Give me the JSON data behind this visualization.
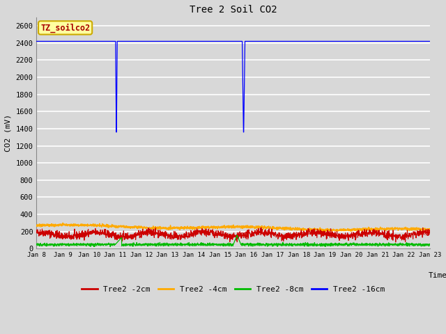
{
  "title": "Tree 2 Soil CO2",
  "ylabel": "CO2 (mV)",
  "xlabel": "Time",
  "annotation_text": "TZ_soilco2",
  "ylim": [
    0,
    2700
  ],
  "yticks": [
    0,
    200,
    400,
    600,
    800,
    1000,
    1200,
    1400,
    1600,
    1800,
    2000,
    2200,
    2400,
    2600
  ],
  "xtick_labels": [
    "Jan 8",
    "Jan 9",
    "Jan 10",
    "Jan 11",
    "Jan 12",
    "Jan 13",
    "Jan 14",
    "Jan 15",
    "Jan 16",
    "Jan 17",
    "Jan 18",
    "Jan 19",
    "Jan 20",
    "Jan 21",
    "Jan 22",
    "Jan 23"
  ],
  "bg_color": "#d8d8d8",
  "plot_bg_color": "#d8d8d8",
  "grid_color": "#ffffff",
  "colors": {
    "2cm": "#cc0000",
    "4cm": "#ffaa00",
    "8cm": "#00bb00",
    "16cm": "#0000ff"
  },
  "legend_labels": [
    "Tree2 -2cm",
    "Tree2 -4cm",
    "Tree2 -8cm",
    "Tree2 -16cm"
  ],
  "seed": 42
}
